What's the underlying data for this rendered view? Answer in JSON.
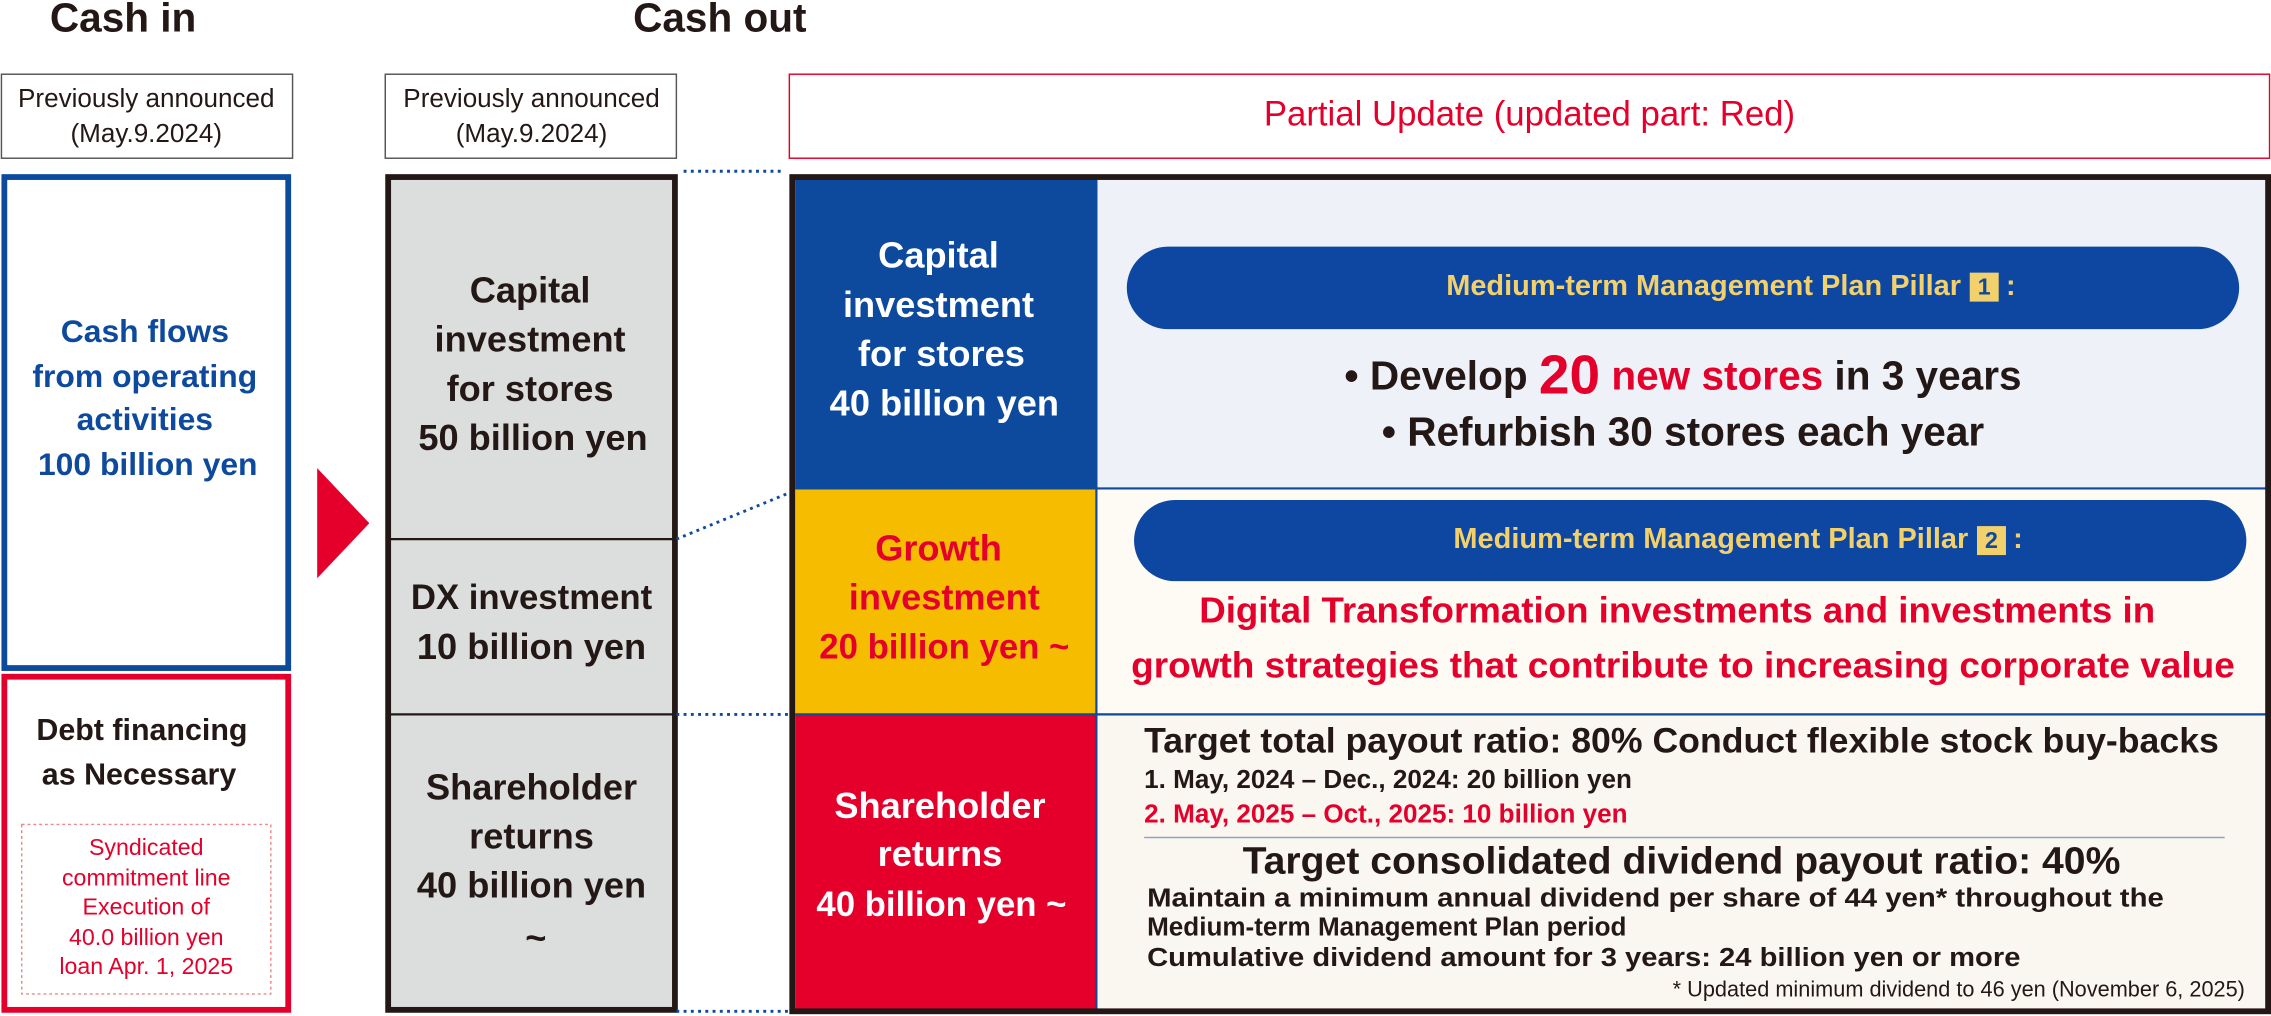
{
  "headers": {
    "cash_in": "Cash in",
    "cash_out": "Cash out"
  },
  "cash_in": {
    "note": [
      "Previously announced",
      "(May.9.2024)"
    ],
    "operating": [
      "Cash flows",
      "from operating",
      "activities",
      "100 billion yen"
    ],
    "debt": {
      "title": [
        "Debt financing",
        "as Necessary"
      ],
      "detail": [
        "Syndicated",
        "commitment line",
        "Execution of",
        "40.0 billion yen",
        "loan Apr. 1, 2025"
      ]
    }
  },
  "previous": {
    "note": [
      "Previously announced",
      "(May.9.2024)"
    ],
    "blocks": [
      [
        "Capital",
        "investment",
        "for stores",
        "50 billion yen"
      ],
      [
        "DX investment",
        "10 billion yen"
      ],
      [
        "Shareholder",
        "returns",
        "40 billion yen",
        "~"
      ]
    ]
  },
  "update": {
    "title": "Partial Update (updated part: Red)",
    "rows": [
      {
        "label": [
          "Capital",
          "investment",
          "for stores",
          "40 billion yen"
        ],
        "pillar": [
          "Medium-term Management Plan Pillar",
          "1",
          ":"
        ],
        "bullets": [
          [
            "• Develop ",
            "20",
            " new stores",
            " in 3 years"
          ],
          [
            "• Refurbish 30 stores each year"
          ]
        ]
      },
      {
        "label": [
          "Growth",
          "investment",
          "20 billion yen ~"
        ],
        "pillar": [
          "Medium-term Management Plan Pillar",
          "2",
          ":"
        ],
        "text": [
          "Digital Transformation investments and investments in",
          "growth strategies that contribute to increasing corporate value"
        ]
      },
      {
        "label": [
          "Shareholder",
          "returns",
          "40 billion yen ~"
        ],
        "buyback": {
          "title": "Target total payout ratio: 80% Conduct flexible stock buy-backs",
          "items": [
            "1. May, 2024 – Dec., 2024: 20 billion yen",
            "2. May, 2025 – Oct., 2025: 10 billion yen"
          ]
        },
        "dividend": {
          "title": "Target consolidated dividend payout ratio: 40%",
          "lines": [
            "Maintain a minimum annual dividend per share of 44 yen* throughout the",
            "Medium-term Management Plan period",
            "Cumulative dividend amount for 3 years: 24 billion yen or more"
          ],
          "footnote": "* Updated minimum dividend to 46 yen (November 6, 2025)"
        }
      }
    ]
  }
}
